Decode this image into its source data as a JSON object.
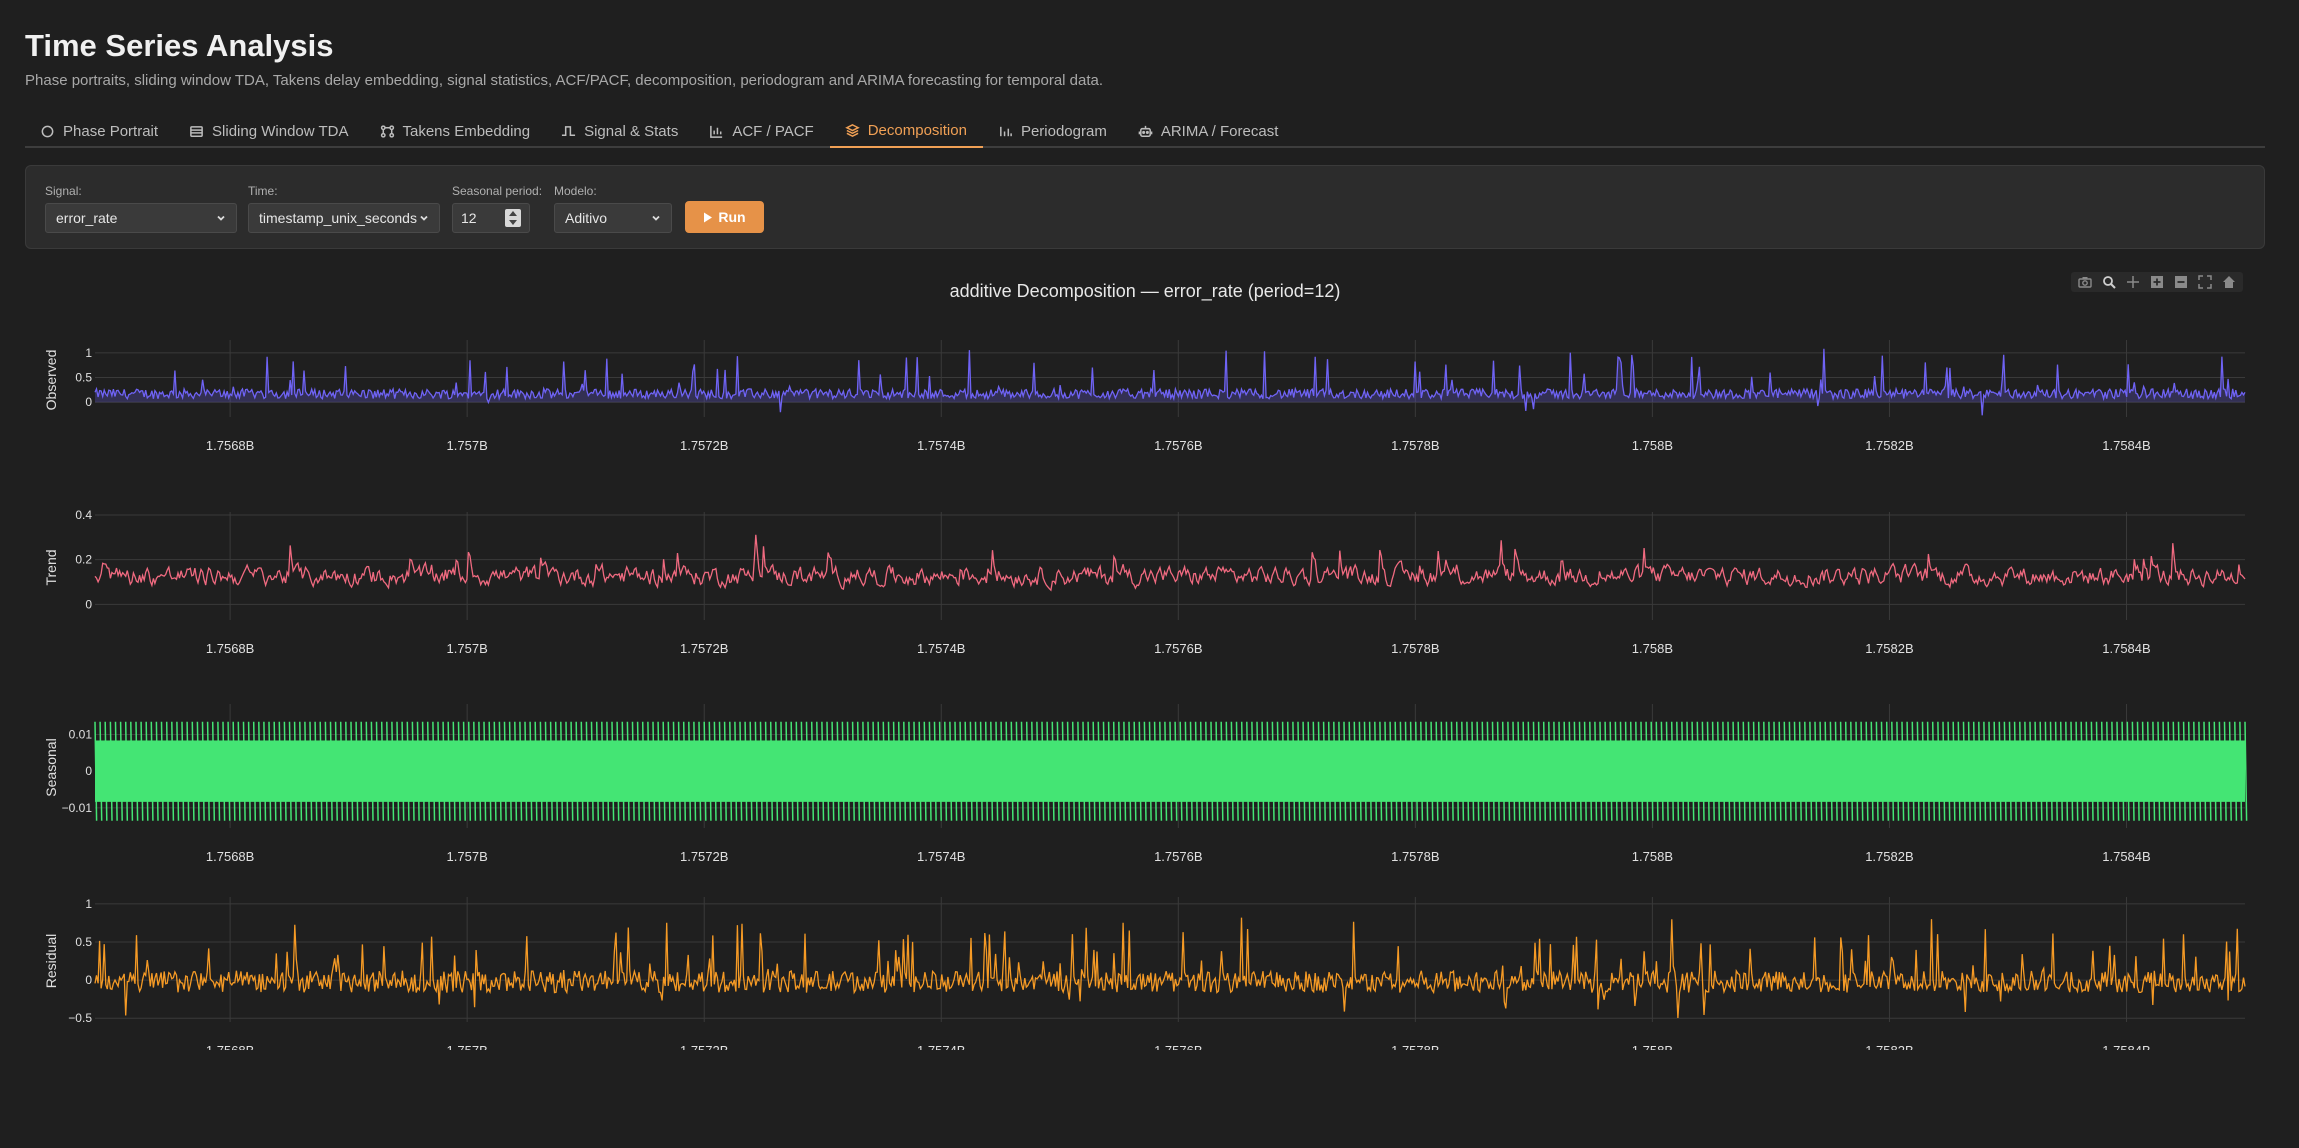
{
  "page": {
    "title": "Time Series Analysis",
    "subtitle": "Phase portraits, sliding window TDA, Takens delay embedding, signal statistics, ACF/PACF, decomposition, periodogram and ARIMA forecasting for temporal data."
  },
  "tabs": [
    {
      "label": "Phase Portrait",
      "icon": "circle-icon"
    },
    {
      "label": "Sliding Window TDA",
      "icon": "window-icon"
    },
    {
      "label": "Takens Embedding",
      "icon": "network-icon"
    },
    {
      "label": "Signal & Stats",
      "icon": "signal-icon"
    },
    {
      "label": "ACF / PACF",
      "icon": "bar-chart-icon"
    },
    {
      "label": "Decomposition",
      "icon": "layers-icon",
      "active": true
    },
    {
      "label": "Periodogram",
      "icon": "frequency-icon"
    },
    {
      "label": "ARIMA / Forecast",
      "icon": "robot-icon"
    }
  ],
  "controls": {
    "signal": {
      "label": "Signal:",
      "value": "error_rate"
    },
    "time": {
      "label": "Time:",
      "value": "timestamp_unix_seconds"
    },
    "period": {
      "label": "Seasonal period:",
      "value": "12"
    },
    "model": {
      "label": "Modelo:",
      "value": "Aditivo"
    },
    "run_label": "Run"
  },
  "colors": {
    "accent": "#e69248",
    "observed": "#6f63f5",
    "trend": "#f06a80",
    "seasonal": "#44e574",
    "residual": "#f59a25",
    "grid": "#3a3a3a"
  },
  "chart_data": {
    "type": "line",
    "title": "additive Decomposition — error_rate (period=12)",
    "x_ticks": [
      "1.7568B",
      "1.757B",
      "1.7572B",
      "1.7574B",
      "1.7576B",
      "1.7578B",
      "1.758B",
      "1.7582B",
      "1.7584B"
    ],
    "x_tick_values": [
      1756800000,
      1757000000,
      1757200000,
      1757400000,
      1757600000,
      1757800000,
      1758000000,
      1758200000,
      1758400000
    ],
    "xlim": [
      1756686000,
      1758500000
    ],
    "grid": true,
    "subplots": [
      {
        "name": "Observed",
        "ylabel": "Observed",
        "y_ticks": [
          "1",
          "0.5",
          "0"
        ],
        "y_tick_values": [
          1,
          0.5,
          0
        ],
        "ylim": [
          -0.3,
          1.2
        ],
        "baseline": 0.07,
        "spread": 0.2,
        "peak": 1.1,
        "dip": -0.28,
        "style": "spiky"
      },
      {
        "name": "Trend",
        "ylabel": "Trend",
        "y_ticks": [
          "0.4",
          "0.2",
          "0"
        ],
        "y_tick_values": [
          0.4,
          0.2,
          0
        ],
        "ylim": [
          -0.07,
          0.4
        ],
        "baseline": 0.12,
        "spread": 0.05,
        "peak": 0.33,
        "dip": -0.06,
        "style": "smooth"
      },
      {
        "name": "Seasonal",
        "ylabel": "Seasonal",
        "y_ticks": [
          "0.01",
          "0",
          "−0.01"
        ],
        "y_tick_values": [
          0.01,
          0,
          -0.01
        ],
        "ylim": [
          -0.0155,
          0.0175
        ],
        "amplitude": 0.0135,
        "style": "periodic"
      },
      {
        "name": "Residual",
        "ylabel": "Residual",
        "y_ticks": [
          "1",
          "0.5",
          "0",
          "−0.5"
        ],
        "y_tick_values": [
          1,
          0.5,
          0,
          -0.5
        ],
        "ylim": [
          -0.55,
          1.05
        ],
        "baseline": -0.05,
        "spread": 0.18,
        "peak": 1.0,
        "dip": -0.5,
        "style": "noise"
      }
    ]
  }
}
